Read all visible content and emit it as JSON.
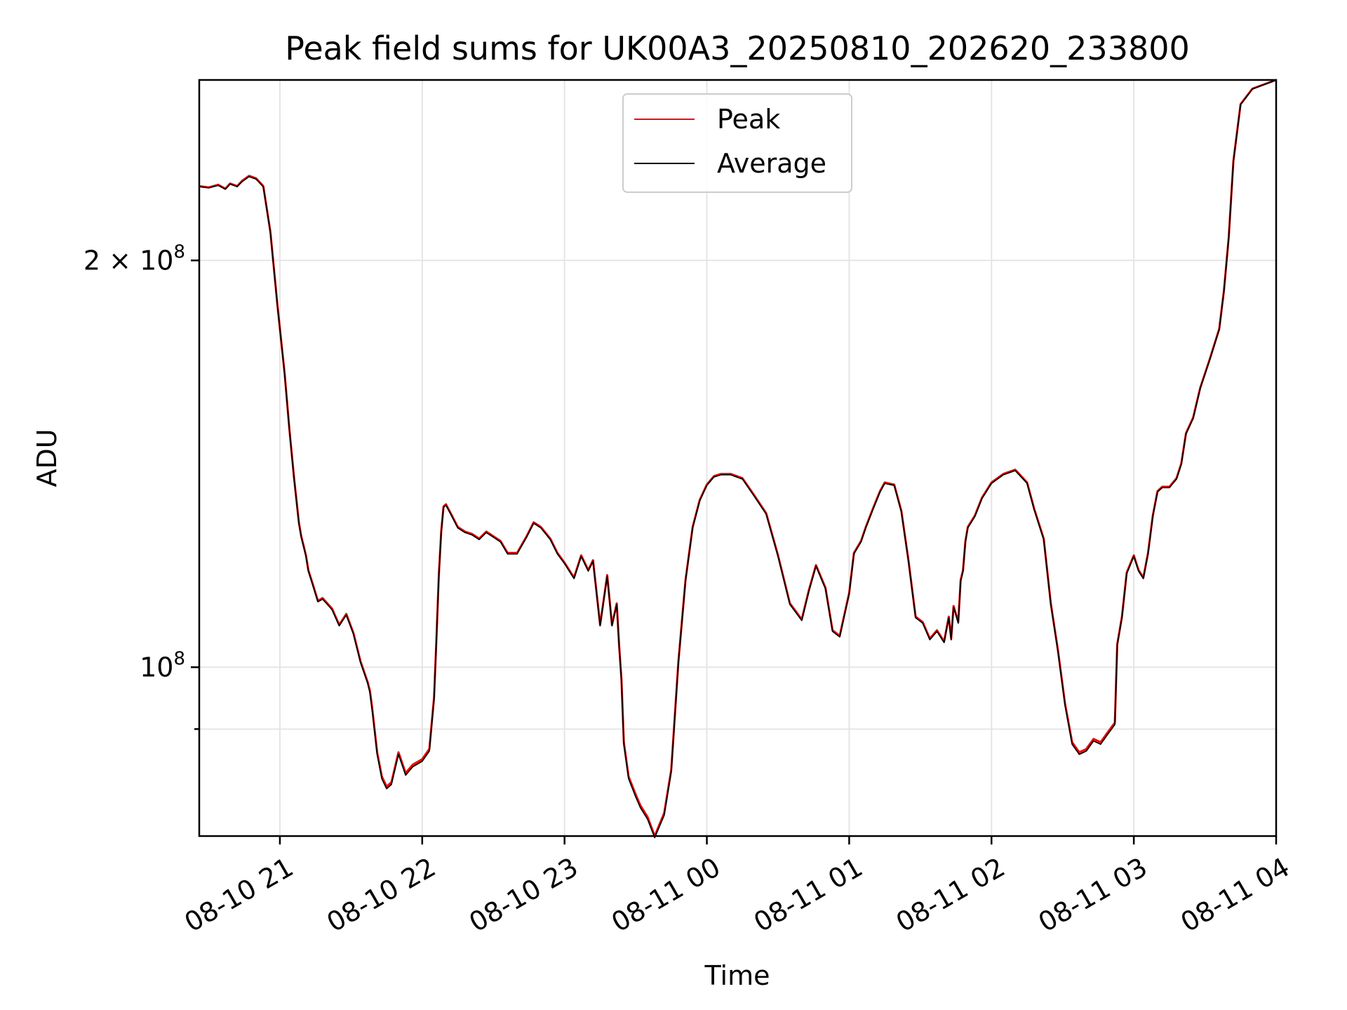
{
  "chart_data": {
    "type": "line",
    "title": "Peak field sums for UK00A3_20250810_202620_233800",
    "xlabel": "Time",
    "ylabel": "ADU",
    "y_scale": "log",
    "ylim": [
      75000000,
      272000000
    ],
    "xlim": [
      "2025-08-10 20:26",
      "2025-08-11 04:00"
    ],
    "grid": true,
    "legend_position": "top-center",
    "x_ticks": [
      {
        "value": "2025-08-10 21:00",
        "label": "08-10 21"
      },
      {
        "value": "2025-08-10 22:00",
        "label": "08-10 22"
      },
      {
        "value": "2025-08-10 23:00",
        "label": "08-10 23"
      },
      {
        "value": "2025-08-11 00:00",
        "label": "08-11 00"
      },
      {
        "value": "2025-08-11 01:00",
        "label": "08-11 01"
      },
      {
        "value": "2025-08-11 02:00",
        "label": "08-11 02"
      },
      {
        "value": "2025-08-11 03:00",
        "label": "08-11 03"
      },
      {
        "value": "2025-08-11 04:00",
        "label": "08-11 04"
      }
    ],
    "y_ticks": [
      {
        "value": 100000000,
        "base": "10",
        "exp": "8",
        "prefix": ""
      },
      {
        "value": 200000000,
        "base": "10",
        "exp": "8",
        "prefix": "2 × "
      }
    ],
    "y_minor_ticks": [
      90000000
    ],
    "x": [
      "2025-08-10 20:26",
      "2025-08-10 20:30",
      "2025-08-10 20:34",
      "2025-08-10 20:37",
      "2025-08-10 20:39",
      "2025-08-10 20:42",
      "2025-08-10 20:44",
      "2025-08-10 20:47",
      "2025-08-10 20:50",
      "2025-08-10 20:53",
      "2025-08-10 20:56",
      "2025-08-10 20:59",
      "2025-08-10 21:02",
      "2025-08-10 21:04",
      "2025-08-10 21:06",
      "2025-08-10 21:08",
      "2025-08-10 21:09",
      "2025-08-10 21:10",
      "2025-08-10 21:11",
      "2025-08-10 21:12",
      "2025-08-10 21:14",
      "2025-08-10 21:16",
      "2025-08-10 21:18",
      "2025-08-10 21:20",
      "2025-08-10 21:22",
      "2025-08-10 21:25",
      "2025-08-10 21:28",
      "2025-08-10 21:31",
      "2025-08-10 21:34",
      "2025-08-10 21:37",
      "2025-08-10 21:38",
      "2025-08-10 21:39",
      "2025-08-10 21:41",
      "2025-08-10 21:43",
      "2025-08-10 21:45",
      "2025-08-10 21:47",
      "2025-08-10 21:50",
      "2025-08-10 21:53",
      "2025-08-10 21:56",
      "2025-08-10 22:00",
      "2025-08-10 22:03",
      "2025-08-10 22:05",
      "2025-08-10 22:06",
      "2025-08-10 22:07",
      "2025-08-10 22:08",
      "2025-08-10 22:09",
      "2025-08-10 22:10",
      "2025-08-10 22:12",
      "2025-08-10 22:15",
      "2025-08-10 22:18",
      "2025-08-10 22:21",
      "2025-08-10 22:24",
      "2025-08-10 22:27",
      "2025-08-10 22:30",
      "2025-08-10 22:33",
      "2025-08-10 22:36",
      "2025-08-10 22:40",
      "2025-08-10 22:44",
      "2025-08-10 22:47",
      "2025-08-10 22:50",
      "2025-08-10 22:54",
      "2025-08-10 22:57",
      "2025-08-10 23:00",
      "2025-08-10 23:04",
      "2025-08-10 23:07",
      "2025-08-10 23:10",
      "2025-08-10 23:12",
      "2025-08-10 23:15",
      "2025-08-10 23:18",
      "2025-08-10 23:20",
      "2025-08-10 23:22",
      "2025-08-10 23:23",
      "2025-08-10 23:24",
      "2025-08-10 23:25",
      "2025-08-10 23:27",
      "2025-08-10 23:30",
      "2025-08-10 23:32",
      "2025-08-10 23:35",
      "2025-08-10 23:38",
      "2025-08-10 23:42",
      "2025-08-10 23:45",
      "2025-08-10 23:48",
      "2025-08-10 23:51",
      "2025-08-10 23:54",
      "2025-08-10 23:57",
      "2025-08-11 00:00",
      "2025-08-11 00:03",
      "2025-08-11 00:06",
      "2025-08-11 00:10",
      "2025-08-11 00:15",
      "2025-08-11 00:20",
      "2025-08-11 00:25",
      "2025-08-11 00:30",
      "2025-08-11 00:35",
      "2025-08-11 00:40",
      "2025-08-11 00:43",
      "2025-08-11 00:46",
      "2025-08-11 00:50",
      "2025-08-11 00:53",
      "2025-08-11 00:56",
      "2025-08-11 01:00",
      "2025-08-11 01:02",
      "2025-08-11 01:05",
      "2025-08-11 01:07",
      "2025-08-11 01:10",
      "2025-08-11 01:13",
      "2025-08-11 01:15",
      "2025-08-11 01:19",
      "2025-08-11 01:22",
      "2025-08-11 01:25",
      "2025-08-11 01:28",
      "2025-08-11 01:31",
      "2025-08-11 01:34",
      "2025-08-11 01:37",
      "2025-08-11 01:40",
      "2025-08-11 01:42",
      "2025-08-11 01:43",
      "2025-08-11 01:44",
      "2025-08-11 01:45",
      "2025-08-11 01:46",
      "2025-08-11 01:47",
      "2025-08-11 01:48",
      "2025-08-11 01:49",
      "2025-08-11 01:50",
      "2025-08-11 01:53",
      "2025-08-11 01:56",
      "2025-08-11 02:00",
      "2025-08-11 02:05",
      "2025-08-11 02:10",
      "2025-08-11 02:15",
      "2025-08-11 02:18",
      "2025-08-11 02:22",
      "2025-08-11 02:25",
      "2025-08-11 02:28",
      "2025-08-11 02:31",
      "2025-08-11 02:34",
      "2025-08-11 02:37",
      "2025-08-11 02:40",
      "2025-08-11 02:43",
      "2025-08-11 02:46",
      "2025-08-11 02:49",
      "2025-08-11 02:52",
      "2025-08-11 02:53",
      "2025-08-11 02:55",
      "2025-08-11 02:57",
      "2025-08-11 03:00",
      "2025-08-11 03:02",
      "2025-08-11 03:04",
      "2025-08-11 03:06",
      "2025-08-11 03:08",
      "2025-08-11 03:10",
      "2025-08-11 03:12",
      "2025-08-11 03:15",
      "2025-08-11 03:18",
      "2025-08-11 03:20",
      "2025-08-11 03:22",
      "2025-08-11 03:25",
      "2025-08-11 03:28",
      "2025-08-11 03:32",
      "2025-08-11 03:36",
      "2025-08-11 03:38",
      "2025-08-11 03:40",
      "2025-08-11 03:42",
      "2025-08-11 03:45",
      "2025-08-11 03:50",
      "2025-08-11 04:00"
    ],
    "series": [
      {
        "name": "Peak",
        "color": "#ff0000",
        "values": [
          227000000,
          226500000,
          227500000,
          226000000,
          228000000,
          227000000,
          229000000,
          231000000,
          230000000,
          227000000,
          210000000,
          185000000,
          165000000,
          150000000,
          138000000,
          128000000,
          125000000,
          123000000,
          121000000,
          118000000,
          115000000,
          112000000,
          112500000,
          111500000,
          110500000,
          107500000,
          109500000,
          106000000,
          101000000,
          97500000,
          96000000,
          93000000,
          86500000,
          83000000,
          81600000,
          82200000,
          86500000,
          83500000,
          84700000,
          85500000,
          87000000,
          95000000,
          105000000,
          117000000,
          126000000,
          131500000,
          132000000,
          130000000,
          127000000,
          126000000,
          125500000,
          124500000,
          126000000,
          125000000,
          124000000,
          121500000,
          121500000,
          125000000,
          128000000,
          127000000,
          124500000,
          121500000,
          119500000,
          116500000,
          121000000,
          118000000,
          120000000,
          107500000,
          117000000,
          107500000,
          111500000,
          104000000,
          98000000,
          88000000,
          83000000,
          80500000,
          79000000,
          77500000,
          75000000,
          78000000,
          84000000,
          101000000,
          116000000,
          127000000,
          133000000,
          136500000,
          138500000,
          139000000,
          139000000,
          138000000,
          134000000,
          130000000,
          121000000,
          111500000,
          108500000,
          114000000,
          119000000,
          114500000,
          106500000,
          105500000,
          113500000,
          121500000,
          124000000,
          127000000,
          131000000,
          135000000,
          137000000,
          136500000,
          130500000,
          120000000,
          109000000,
          108000000,
          105000000,
          106500000,
          104500000,
          109000000,
          105000000,
          111000000,
          109500000,
          108000000,
          116000000,
          118000000,
          124000000,
          127000000,
          129500000,
          133500000,
          137000000,
          139000000,
          140000000,
          137000000,
          131000000,
          124500000,
          111500000,
          103000000,
          94000000,
          88000000,
          86500000,
          87000000,
          88500000,
          88000000,
          89500000,
          91000000,
          104000000,
          109000000,
          117500000,
          121000000,
          118000000,
          116500000,
          121500000,
          129500000,
          135000000,
          136000000,
          136000000,
          138000000,
          141500000,
          149000000,
          153000000,
          161000000,
          169000000,
          178000000,
          190000000,
          208000000,
          237000000,
          261000000,
          268000000,
          272000000
        ]
      },
      {
        "name": "Average",
        "color": "#000000",
        "values": [
          226800000,
          226300000,
          227300000,
          225800000,
          227800000,
          226800000,
          228700000,
          230700000,
          229700000,
          226700000,
          209800000,
          184800000,
          164800000,
          149800000,
          137800000,
          127800000,
          124800000,
          122800000,
          120800000,
          117800000,
          114800000,
          111800000,
          112300000,
          111300000,
          110300000,
          107300000,
          109300000,
          105800000,
          100800000,
          97300000,
          95700000,
          92700000,
          86200000,
          82700000,
          81300000,
          81900000,
          86200000,
          83200000,
          84400000,
          85200000,
          86700000,
          94700000,
          104800000,
          116800000,
          125800000,
          131300000,
          131800000,
          129800000,
          126800000,
          125800000,
          125300000,
          124300000,
          125800000,
          124800000,
          123800000,
          121300000,
          121300000,
          124800000,
          127800000,
          126800000,
          124300000,
          121300000,
          119300000,
          116300000,
          120800000,
          117800000,
          119800000,
          107300000,
          116800000,
          107300000,
          111300000,
          103800000,
          97700000,
          87700000,
          82700000,
          80200000,
          78700000,
          77200000,
          74800000,
          77700000,
          83700000,
          100800000,
          115800000,
          126800000,
          132800000,
          136300000,
          138300000,
          138800000,
          138800000,
          137800000,
          133800000,
          129800000,
          120800000,
          111300000,
          108300000,
          113800000,
          118800000,
          114300000,
          106300000,
          105300000,
          113300000,
          121300000,
          123800000,
          126800000,
          130800000,
          134800000,
          136800000,
          136300000,
          130300000,
          119800000,
          108800000,
          107800000,
          104800000,
          106300000,
          104300000,
          108800000,
          104800000,
          110800000,
          109300000,
          107800000,
          115800000,
          117800000,
          123800000,
          126800000,
          129300000,
          133300000,
          136800000,
          138800000,
          139800000,
          136800000,
          130800000,
          124300000,
          111300000,
          102800000,
          93700000,
          87700000,
          86200000,
          86700000,
          88200000,
          87700000,
          89200000,
          90700000,
          103800000,
          108800000,
          117300000,
          120800000,
          117800000,
          116300000,
          121300000,
          129300000,
          134800000,
          135800000,
          135800000,
          137800000,
          141300000,
          148800000,
          152800000,
          160800000,
          168800000,
          177800000,
          189800000,
          207800000,
          236800000,
          260800000,
          267800000,
          272000000
        ]
      }
    ]
  }
}
